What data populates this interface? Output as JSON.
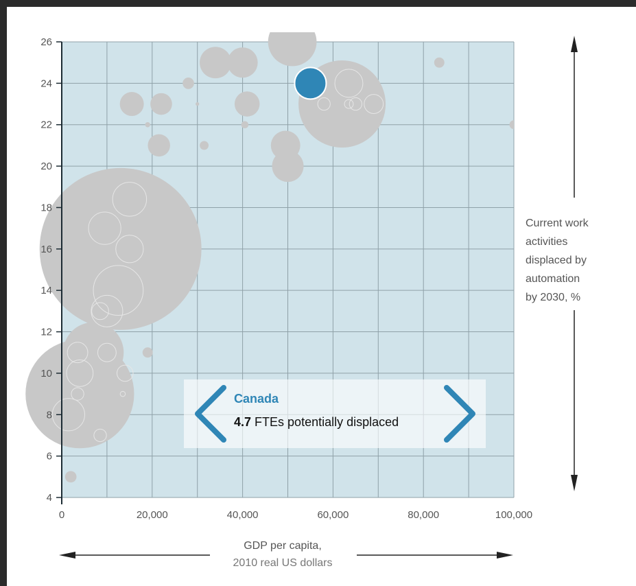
{
  "colors": {
    "plot_bg": "#d0e3ea",
    "gridline": "#8fa1a8",
    "bubble": "#c8c8c8",
    "highlight": "#2f86b6",
    "axis_line": "#1c2b33",
    "arrow": "#222222"
  },
  "chart_data": {
    "type": "scatter",
    "title": "",
    "xlabel": "GDP per capita,",
    "xlabel_sub": "2010 real US dollars",
    "ylabel_lines": [
      "Current work",
      "activities",
      "displaced by",
      "automation",
      "by 2030, %"
    ],
    "xlim": [
      0,
      100000
    ],
    "ylim": [
      4,
      26
    ],
    "grid": true,
    "x_grid_step": 10000,
    "x_ticks": [
      0,
      20000,
      40000,
      60000,
      80000,
      100000
    ],
    "x_tick_labels": [
      "0",
      "20,000",
      "40,000",
      "60,000",
      "80,000",
      "100,000"
    ],
    "y_ticks": [
      4,
      6,
      8,
      10,
      12,
      14,
      16,
      18,
      20,
      22,
      24,
      26
    ],
    "y_tick_labels": [
      "4",
      "6",
      "8",
      "10",
      "12",
      "14",
      "16",
      "18",
      "20",
      "22",
      "24",
      "26"
    ],
    "size_measure": "FTEs potentially displaced",
    "points": [
      {
        "x": 13000,
        "y": 16,
        "size": 1000
      },
      {
        "x": 4000,
        "y": 9,
        "size": 450
      },
      {
        "x": 7000,
        "y": 11,
        "size": 140
      },
      {
        "x": 62000,
        "y": 23,
        "size": 290
      },
      {
        "x": 51000,
        "y": 26,
        "size": 90
      },
      {
        "x": 34000,
        "y": 25,
        "size": 38
      },
      {
        "x": 40000,
        "y": 25,
        "size": 35
      },
      {
        "x": 15500,
        "y": 23,
        "size": 22
      },
      {
        "x": 22000,
        "y": 23,
        "size": 18
      },
      {
        "x": 41000,
        "y": 23,
        "size": 24
      },
      {
        "x": 21500,
        "y": 21,
        "size": 19
      },
      {
        "x": 49500,
        "y": 21,
        "size": 33
      },
      {
        "x": 50000,
        "y": 20,
        "size": 38
      },
      {
        "x": 28000,
        "y": 24,
        "size": 5
      },
      {
        "x": 83500,
        "y": 25,
        "size": 4
      },
      {
        "x": 100000,
        "y": 22,
        "size": 3
      },
      {
        "x": 19000,
        "y": 22,
        "size": 1
      },
      {
        "x": 30000,
        "y": 23,
        "size": 0.5
      },
      {
        "x": 31500,
        "y": 21,
        "size": 3
      },
      {
        "x": 40500,
        "y": 22,
        "size": 2
      },
      {
        "x": 19000,
        "y": 11,
        "size": 4
      },
      {
        "x": 2000,
        "y": 5,
        "size": 5
      },
      {
        "x": 55000,
        "y": 24,
        "size": 4.7,
        "highlight": true
      }
    ],
    "outline_points": [
      {
        "x": 15000,
        "y": 18.4,
        "size": 44
      },
      {
        "x": 9500,
        "y": 17,
        "size": 40
      },
      {
        "x": 15000,
        "y": 16,
        "size": 29
      },
      {
        "x": 12500,
        "y": 14,
        "size": 95
      },
      {
        "x": 10000,
        "y": 13,
        "size": 38
      },
      {
        "x": 8500,
        "y": 13,
        "size": 11
      },
      {
        "x": 3500,
        "y": 11,
        "size": 16
      },
      {
        "x": 10000,
        "y": 11,
        "size": 13
      },
      {
        "x": 4000,
        "y": 10,
        "size": 27
      },
      {
        "x": 14000,
        "y": 10,
        "size": 10
      },
      {
        "x": 3500,
        "y": 9,
        "size": 6
      },
      {
        "x": 13500,
        "y": 9,
        "size": 1
      },
      {
        "x": 1500,
        "y": 8,
        "size": 40
      },
      {
        "x": 8500,
        "y": 7,
        "size": 6
      },
      {
        "x": 58000,
        "y": 23,
        "size": 6
      },
      {
        "x": 63500,
        "y": 24,
        "size": 30
      },
      {
        "x": 63500,
        "y": 23,
        "size": 3
      },
      {
        "x": 65000,
        "y": 23,
        "size": 6
      },
      {
        "x": 69000,
        "y": 23,
        "size": 14
      }
    ]
  },
  "callout": {
    "name": "Canada",
    "value": "4.7",
    "text": "FTEs potentially displaced"
  }
}
